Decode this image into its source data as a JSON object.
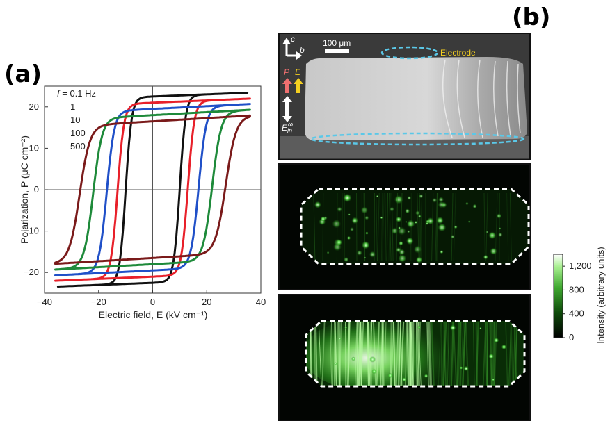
{
  "panels": {
    "a": {
      "label": "(a)"
    },
    "b": {
      "label": "(b)"
    }
  },
  "chart_data": [
    {
      "type": "line",
      "panel": "(a)",
      "xlabel": "Electric field, E (kV cm⁻¹)",
      "ylabel": "Polarization, P (μC cm⁻²)",
      "xlim": [
        -40,
        40
      ],
      "ylim": [
        -25,
        25
      ],
      "xticks": [
        "−40",
        "−20",
        "0",
        "20",
        "40"
      ],
      "yticks": [
        "20",
        "10",
        "0",
        "−10",
        "−20"
      ],
      "xtick_values": [
        -40,
        -20,
        0,
        20,
        40
      ],
      "ytick_values": [
        20,
        10,
        0,
        -10,
        -20
      ],
      "grid": false,
      "zero_lines": true,
      "legend_placement": "top-left",
      "legend_prefix": "f = ",
      "legend_unit": " Hz",
      "series": [
        {
          "name": "0.1",
          "color": "#111111",
          "coercive": 10,
          "ps": 22.5,
          "emax": 35,
          "sharp": 2.2,
          "tail": 0.9
        },
        {
          "name": "1",
          "color": "#e8202a",
          "coercive": 13,
          "ps": 21,
          "emax": 36,
          "sharp": 2.4,
          "tail": 1.0
        },
        {
          "name": "10",
          "color": "#2050c8",
          "coercive": 17,
          "ps": 19.5,
          "emax": 36,
          "sharp": 2.8,
          "tail": 1.2
        },
        {
          "name": "100",
          "color": "#1e8a3a",
          "coercive": 22,
          "ps": 18,
          "emax": 36,
          "sharp": 3.3,
          "tail": 1.3
        },
        {
          "name": "500",
          "color": "#7a1a1a",
          "coercive": 27,
          "ps": 16.5,
          "emax": 36,
          "sharp": 3.8,
          "tail": 1.4
        }
      ]
    },
    {
      "type": "heatmap",
      "panel": "(b)",
      "colorbar_label": "Intensity (arbitrary units)",
      "colorbar_ticks": [
        "1,200",
        "800",
        "400",
        "0"
      ],
      "colorbar_tick_values": [
        1200,
        800,
        400,
        0
      ],
      "colorbar_range": [
        0,
        1400
      ]
    }
  ],
  "micrograph": {
    "axis_c": "c",
    "axis_b": "b",
    "scale_bar": "100 μm",
    "electrode_label": "Electrode",
    "p_label": "P",
    "e_label": "E",
    "e_in_label": "E",
    "e_in_sub": "in",
    "e_in_sup": "ω",
    "colors": {
      "electrode": "#5bc8e8",
      "p_arrow": "#f07070",
      "e_arrow": "#f5d020",
      "dashed": "#ffffff",
      "glow": "#4ee040"
    }
  }
}
